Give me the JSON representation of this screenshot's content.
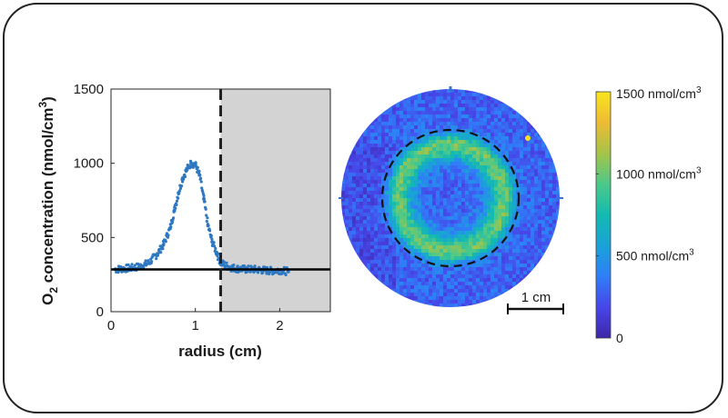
{
  "chart_data": [
    {
      "type": "scatter",
      "xlabel": "radius (cm)",
      "ylabel_parts": {
        "main": "O",
        "sub": "2",
        "mid": " concentration (nmol/cm",
        "sup": "3",
        "end": ")"
      },
      "xlim": [
        0,
        2.6
      ],
      "ylim": [
        0,
        1500
      ],
      "xticks": [
        0,
        1,
        2
      ],
      "yticks": [
        0,
        500,
        1000,
        1500
      ],
      "grid": false,
      "shaded_region_x": [
        1.3,
        2.6
      ],
      "dashed_vline_x": 1.3,
      "baseline_y": 285,
      "series": [
        {
          "color": "#2e78c2",
          "x": [
            0.05,
            0.15,
            0.25,
            0.35,
            0.45,
            0.55,
            0.62,
            0.7,
            0.75,
            0.8,
            0.85,
            0.9,
            0.95,
            1.0,
            1.05,
            1.1,
            1.15,
            1.2,
            1.25,
            1.3,
            1.4,
            1.5,
            1.6,
            1.7,
            1.8,
            1.9,
            2.0,
            2.1
          ],
          "y": [
            285,
            290,
            295,
            305,
            330,
            390,
            450,
            560,
            680,
            800,
            900,
            960,
            1000,
            990,
            920,
            760,
            580,
            470,
            400,
            330,
            300,
            290,
            285,
            285,
            280,
            275,
            280,
            270
          ]
        }
      ]
    },
    {
      "type": "heatmap",
      "description_label": "1 cm",
      "scale_bar_cm": 1,
      "colorbar": {
        "min": 0,
        "max": 1500,
        "tick_values": [
          0,
          500,
          1000,
          1500
        ],
        "tick_labels": [
          {
            "value": "0",
            "unit": "",
            "sup": ""
          },
          {
            "value": "500 nmol/cm",
            "unit": "",
            "sup": "3"
          },
          {
            "value": "1000 nmol/cm",
            "unit": "",
            "sup": "3"
          },
          {
            "value": "1500 nmol/cm",
            "unit": "",
            "sup": "3"
          }
        ],
        "colormap": [
          "#3e26a8",
          "#4746e9",
          "#2f7ef8",
          "#1aa2d8",
          "#13bab0",
          "#4bc98a",
          "#a6c448",
          "#edbb35",
          "#f9e51c"
        ]
      }
    }
  ]
}
